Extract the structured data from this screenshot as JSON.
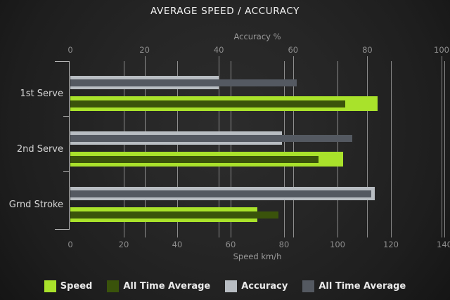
{
  "title": "AVERAGE SPEED / ACCURACY",
  "chart_data": {
    "type": "bar",
    "orientation": "horizontal",
    "title": "AVERAGE SPEED / ACCURACY",
    "categories": [
      "1st Serve",
      "2nd Serve",
      "Grnd Stroke"
    ],
    "series": [
      {
        "name": "Speed",
        "axis": "speed",
        "color": "#a9e22b",
        "values": [
          115,
          102,
          70
        ]
      },
      {
        "name": "All Time Average",
        "axis": "speed",
        "color": "#3a530b",
        "values": [
          103,
          93,
          78
        ]
      },
      {
        "name": "Accuracy",
        "axis": "accuracy",
        "color": "#b8bdc2",
        "values": [
          40,
          57,
          82
        ]
      },
      {
        "name": "All Time Average",
        "axis": "accuracy",
        "color": "#545961",
        "values": [
          61,
          76,
          81
        ]
      }
    ],
    "speed_axis": {
      "label": "Speed km/h",
      "min": 0,
      "max": 140,
      "ticks": [
        0,
        20,
        40,
        60,
        80,
        100,
        120,
        140
      ],
      "position": "bottom"
    },
    "accuracy_axis": {
      "label": "Accuracy %",
      "min": 0,
      "max": 100,
      "ticks": [
        0,
        20,
        40,
        60,
        80,
        100
      ],
      "position": "top"
    },
    "grid": true,
    "legend_position": "bottom"
  },
  "legend": [
    {
      "label": "Speed",
      "color": "#a9e22b"
    },
    {
      "label": "All Time Average",
      "color": "#3a530b"
    },
    {
      "label": "Accuracy",
      "color": "#b8bdc2"
    },
    {
      "label": "All Time Average",
      "color": "#545961"
    }
  ]
}
